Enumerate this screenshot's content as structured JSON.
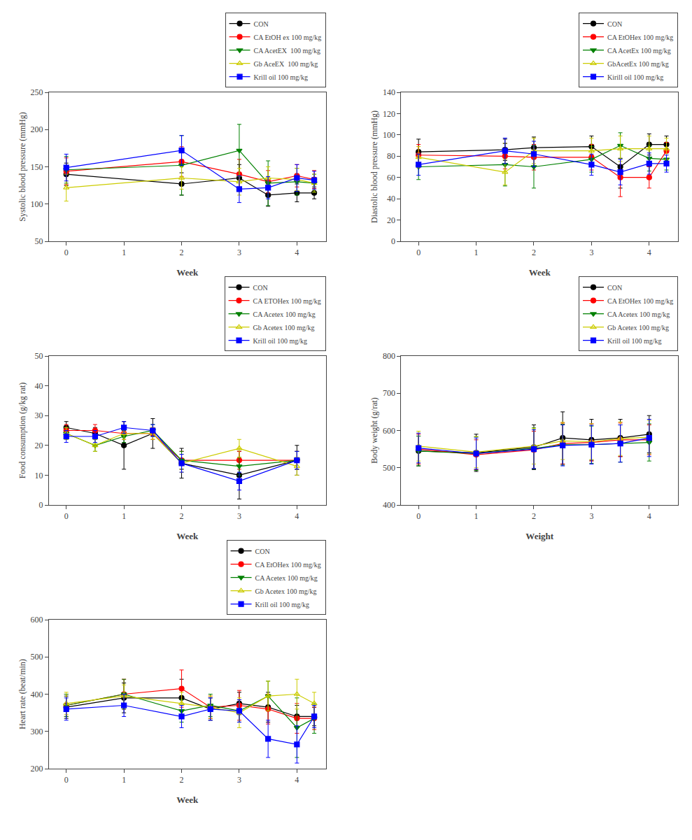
{
  "chart_data": [
    {
      "type": "line",
      "xlabel": "Week",
      "ylabel": "Systolic blood pressure (mmHg)",
      "xlim": [
        -0.3,
        4.5
      ],
      "xticks": [
        0,
        1,
        2,
        3,
        4
      ],
      "ylim": [
        50,
        250
      ],
      "yticks": [
        50,
        100,
        150,
        200,
        250
      ],
      "grid": false,
      "legend": "upper right",
      "series": [
        {
          "name": "CON",
          "color": "black",
          "marker": "circle",
          "x": [
            0,
            2,
            3,
            3.5,
            4,
            4.3
          ],
          "values": [
            140,
            127,
            135,
            112,
            115,
            115
          ],
          "yerr": [
            15,
            15,
            18,
            15,
            12,
            8
          ]
        },
        {
          "name": "CA EtOH ex 100 mg/kg",
          "color": "red",
          "marker": "circle",
          "x": [
            0,
            2,
            3,
            3.5,
            4,
            4.3
          ],
          "values": [
            144,
            157,
            140,
            130,
            138,
            133
          ],
          "yerr": [
            18,
            20,
            20,
            15,
            15,
            12
          ]
        },
        {
          "name": "CA AcetEX  100 mg/kg",
          "color": "green",
          "marker": "triangle-down",
          "x": [
            0,
            2,
            3,
            3.5,
            4,
            4.3
          ],
          "values": [
            146,
            152,
            172,
            128,
            130,
            128
          ],
          "yerr": [
            18,
            40,
            35,
            30,
            18,
            12
          ]
        },
        {
          "name": "Gb AceEX  100 mg/kg",
          "color": "#CCCC00",
          "marker": "triangle-up-open",
          "x": [
            0,
            2,
            3,
            3.5,
            4,
            4.3
          ],
          "values": [
            122,
            135,
            130,
            135,
            133,
            128
          ],
          "yerr": [
            18,
            15,
            18,
            15,
            15,
            12
          ]
        },
        {
          "name": "Krill oil 100 mg/kg",
          "color": "blue",
          "marker": "square",
          "x": [
            0,
            2,
            3,
            3.5,
            4,
            4.3
          ],
          "values": [
            149,
            172,
            120,
            122,
            135,
            132
          ],
          "yerr": [
            18,
            20,
            18,
            15,
            18,
            12
          ]
        }
      ]
    },
    {
      "type": "line",
      "xlabel": "Week",
      "ylabel": "Diastolic blood pressure (mmHg)",
      "xlim": [
        -0.3,
        4.5
      ],
      "xticks": [
        0,
        1,
        2,
        3,
        4
      ],
      "ylim": [
        0,
        140
      ],
      "yticks": [
        0,
        20,
        40,
        60,
        80,
        100,
        120,
        140
      ],
      "grid": false,
      "legend": "upper right",
      "series": [
        {
          "name": "CON",
          "color": "black",
          "marker": "circle",
          "x": [
            0,
            1.5,
            2,
            3,
            3.5,
            4,
            4.3
          ],
          "values": [
            84,
            86,
            88,
            89,
            70,
            91,
            91
          ],
          "yerr": [
            12,
            10,
            10,
            10,
            20,
            10,
            8
          ]
        },
        {
          "name": "CA EtOHex 100 mg/kg",
          "color": "red",
          "marker": "circle",
          "x": [
            0,
            1.5,
            2,
            3,
            3.5,
            4,
            4.3
          ],
          "values": [
            81,
            80,
            79,
            79,
            60,
            60,
            85
          ],
          "yerr": [
            10,
            12,
            12,
            12,
            18,
            10,
            8
          ]
        },
        {
          "name": "CA AcetEx 100 mg/kg",
          "color": "green",
          "marker": "triangle-down",
          "x": [
            0,
            1.5,
            2,
            3,
            3.5,
            4,
            4.3
          ],
          "values": [
            70,
            72,
            70,
            77,
            90,
            78,
            77
          ],
          "yerr": [
            12,
            20,
            20,
            12,
            12,
            12,
            10
          ]
        },
        {
          "name": "GbAcetEx 100 mg/kg",
          "color": "#CCCC00",
          "marker": "triangle-up-open",
          "x": [
            0,
            1.5,
            2,
            3,
            3.5,
            4,
            4.3
          ],
          "values": [
            79,
            65,
            85,
            85,
            87,
            87,
            87
          ],
          "yerr": [
            10,
            12,
            12,
            12,
            12,
            12,
            10
          ]
        },
        {
          "name": "Kirill oil 100 mg/kg",
          "color": "blue",
          "marker": "square",
          "x": [
            0,
            1.5,
            2,
            3,
            3.5,
            4,
            4.3
          ],
          "values": [
            72,
            85,
            82,
            72,
            65,
            73,
            73
          ],
          "yerr": [
            10,
            12,
            12,
            10,
            12,
            10,
            8
          ]
        }
      ]
    },
    {
      "type": "line",
      "xlabel": "Week",
      "ylabel": "Food consumption (g/kg rat)",
      "xlim": [
        -0.3,
        4.5
      ],
      "xticks": [
        0,
        1,
        2,
        3,
        4
      ],
      "ylim": [
        0,
        50
      ],
      "yticks": [
        0,
        10,
        20,
        30,
        40,
        50
      ],
      "grid": false,
      "legend": "upper right",
      "series": [
        {
          "name": "CON",
          "color": "black",
          "marker": "circle",
          "x": [
            0,
            0.5,
            1,
            1.5,
            2,
            3,
            4
          ],
          "values": [
            26,
            24,
            20,
            24,
            14,
            10,
            15
          ],
          "yerr": [
            2,
            2,
            8,
            5,
            5,
            8,
            5
          ]
        },
        {
          "name": "CA ETOHex 100 mg/kg",
          "color": "red",
          "marker": "circle",
          "x": [
            0,
            0.5,
            1,
            1.5,
            2,
            3,
            4
          ],
          "values": [
            25,
            25,
            24,
            24,
            15,
            15,
            15
          ],
          "yerr": [
            2,
            2,
            2,
            2,
            3,
            3,
            3
          ]
        },
        {
          "name": "CA Acetex 100 mg/kg",
          "color": "green",
          "marker": "triangle-down",
          "x": [
            0,
            0.5,
            1,
            1.5,
            2,
            3,
            4
          ],
          "values": [
            24,
            20,
            23,
            25,
            15,
            13,
            15
          ],
          "yerr": [
            2,
            2,
            2,
            2,
            3,
            3,
            3
          ]
        },
        {
          "name": "Gb Acetex 100 mg/kg",
          "color": "#CCCC00",
          "marker": "triangle-up-open",
          "x": [
            0,
            0.5,
            1,
            1.5,
            2,
            3,
            4
          ],
          "values": [
            24,
            20,
            24,
            24,
            14,
            19,
            13
          ],
          "yerr": [
            2,
            2,
            2,
            2,
            3,
            3,
            3
          ]
        },
        {
          "name": "Krill oil 100 mg/kg",
          "color": "blue",
          "marker": "square",
          "x": [
            0,
            0.5,
            1,
            1.5,
            2,
            3,
            4
          ],
          "values": [
            23,
            23,
            26,
            25,
            14,
            8,
            15
          ],
          "yerr": [
            2,
            2,
            2,
            2,
            3,
            3,
            3
          ]
        }
      ]
    },
    {
      "type": "line",
      "xlabel": "Weight",
      "ylabel": "Body weight (g/rat)",
      "xlim": [
        -0.3,
        4.5
      ],
      "xticks": [
        0,
        1,
        2,
        3,
        4
      ],
      "ylim": [
        400,
        800
      ],
      "yticks": [
        400,
        500,
        600,
        700,
        800
      ],
      "grid": false,
      "legend": "upper right",
      "series": [
        {
          "name": "CON",
          "color": "black",
          "marker": "circle",
          "x": [
            0,
            1,
            2,
            2.5,
            3,
            3.5,
            4
          ],
          "values": [
            545,
            540,
            555,
            580,
            575,
            580,
            590
          ],
          "yerr": [
            40,
            50,
            60,
            70,
            55,
            50,
            50
          ]
        },
        {
          "name": "CA EtOHex 100 mg/kg",
          "color": "red",
          "marker": "circle",
          "x": [
            0,
            1,
            2,
            2.5,
            3,
            3.5,
            4
          ],
          "values": [
            550,
            535,
            548,
            565,
            568,
            575,
            575
          ],
          "yerr": [
            40,
            40,
            50,
            55,
            50,
            45,
            40
          ]
        },
        {
          "name": "CA Acetex 100 mg/kg",
          "color": "green",
          "marker": "triangle-down",
          "x": [
            0,
            1,
            2,
            2.5,
            3,
            3.5,
            4
          ],
          "values": [
            545,
            538,
            552,
            562,
            562,
            565,
            568
          ],
          "yerr": [
            40,
            45,
            55,
            55,
            50,
            50,
            50
          ]
        },
        {
          "name": "Gb Acetex 100 mg/kg",
          "color": "#CCCC00",
          "marker": "triangle-up-open",
          "x": [
            0,
            1,
            2,
            2.5,
            3,
            3.5,
            4
          ],
          "values": [
            558,
            542,
            558,
            572,
            570,
            578,
            582
          ],
          "yerr": [
            40,
            42,
            48,
            50,
            48,
            45,
            45
          ]
        },
        {
          "name": "Krill oil 100 mg/kg",
          "color": "blue",
          "marker": "square",
          "x": [
            0,
            1,
            2,
            2.5,
            3,
            3.5,
            4
          ],
          "values": [
            553,
            538,
            550,
            560,
            562,
            565,
            580
          ],
          "yerr": [
            40,
            42,
            52,
            55,
            52,
            50,
            50
          ]
        }
      ]
    },
    {
      "type": "line",
      "xlabel": "Week",
      "ylabel": "Heart rate (beat/min)",
      "xlim": [
        -0.3,
        4.5
      ],
      "xticks": [
        0,
        1,
        2,
        3,
        4
      ],
      "ylim": [
        200,
        600
      ],
      "yticks": [
        200,
        300,
        400,
        500,
        600
      ],
      "grid": false,
      "legend": "upper right",
      "series": [
        {
          "name": "CON",
          "color": "black",
          "marker": "circle",
          "x": [
            0,
            1,
            2,
            2.5,
            3,
            3.5,
            4,
            4.3
          ],
          "values": [
            365,
            390,
            390,
            360,
            375,
            365,
            340,
            340
          ],
          "yerr": [
            30,
            40,
            50,
            30,
            30,
            40,
            30,
            25
          ]
        },
        {
          "name": "CA EtOHex 100 mg/kg",
          "color": "red",
          "marker": "circle",
          "x": [
            0,
            1,
            2,
            2.5,
            3,
            3.5,
            4,
            4.3
          ],
          "values": [
            370,
            400,
            415,
            365,
            370,
            360,
            335,
            335
          ],
          "yerr": [
            30,
            40,
            50,
            30,
            40,
            40,
            40,
            30
          ]
        },
        {
          "name": "CA Acetex 100 mg/kg",
          "color": "green",
          "marker": "triangle-down",
          "x": [
            0,
            1,
            2,
            2.5,
            3,
            3.5,
            4,
            4.3
          ],
          "values": [
            370,
            400,
            355,
            370,
            355,
            395,
            310,
            335
          ],
          "yerr": [
            30,
            40,
            30,
            30,
            30,
            40,
            80,
            40
          ]
        },
        {
          "name": "Gb Acetex 100 mg/kg",
          "color": "#CCCC00",
          "marker": "triangle-up-open",
          "x": [
            0,
            1,
            2,
            2.5,
            3,
            3.5,
            4,
            4.3
          ],
          "values": [
            375,
            395,
            375,
            365,
            350,
            395,
            400,
            375
          ],
          "yerr": [
            30,
            30,
            30,
            30,
            40,
            40,
            40,
            30
          ]
        },
        {
          "name": "Krill oil 100 mg/kg",
          "color": "blue",
          "marker": "square",
          "x": [
            0,
            1,
            2,
            2.5,
            3,
            3.5,
            4,
            4.3
          ],
          "values": [
            360,
            370,
            340,
            360,
            355,
            280,
            265,
            340
          ],
          "yerr": [
            30,
            30,
            30,
            30,
            30,
            50,
            50,
            30
          ]
        }
      ]
    }
  ]
}
